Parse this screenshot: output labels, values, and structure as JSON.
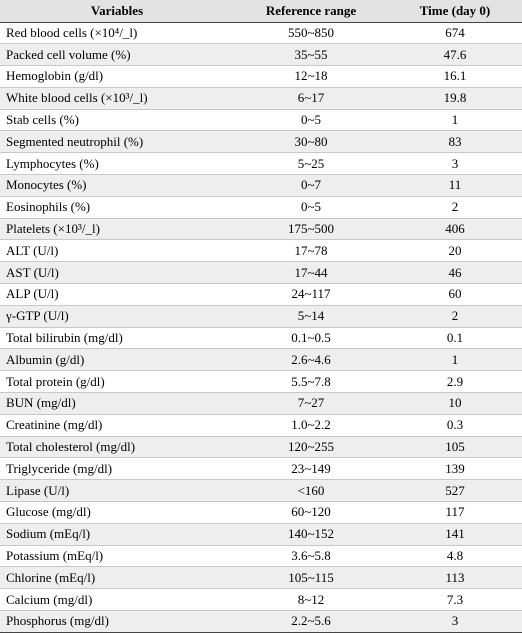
{
  "table": {
    "headers": [
      "Variables",
      "Reference range",
      "Time (day 0)"
    ],
    "rows": [
      {
        "variable": "Red blood cells (×10⁴/_l)",
        "reference": "550~850",
        "value": "674"
      },
      {
        "variable": "Packed cell volume (%)",
        "reference": "35~55",
        "value": "47.6"
      },
      {
        "variable": "Hemoglobin (g/dl)",
        "reference": "12~18",
        "value": "16.1"
      },
      {
        "variable": "White blood cells (×10³/_l)",
        "reference": "6~17",
        "value": "19.8"
      },
      {
        "variable": "Stab cells (%)",
        "reference": "0~5",
        "value": "1"
      },
      {
        "variable": "Segmented neutrophil (%)",
        "reference": "30~80",
        "value": "83"
      },
      {
        "variable": "Lymphocytes (%)",
        "reference": "5~25",
        "value": "3"
      },
      {
        "variable": "Monocytes (%)",
        "reference": "0~7",
        "value": "11"
      },
      {
        "variable": "Eosinophils (%)",
        "reference": "0~5",
        "value": "2"
      },
      {
        "variable": "Platelets (×10³/_l)",
        "reference": "175~500",
        "value": "406"
      },
      {
        "variable": "ALT (U/l)",
        "reference": "17~78",
        "value": "20"
      },
      {
        "variable": "AST (U/l)",
        "reference": "17~44",
        "value": "46"
      },
      {
        "variable": "ALP (U/l)",
        "reference": "24~117",
        "value": "60"
      },
      {
        "variable": "γ-GTP (U/l)",
        "reference": "5~14",
        "value": "2"
      },
      {
        "variable": "Total bilirubin (mg/dl)",
        "reference": "0.1~0.5",
        "value": "0.1"
      },
      {
        "variable": "Albumin (g/dl)",
        "reference": "2.6~4.6",
        "value": "1"
      },
      {
        "variable": "Total protein (g/dl)",
        "reference": "5.5~7.8",
        "value": "2.9"
      },
      {
        "variable": "BUN (mg/dl)",
        "reference": "7~27",
        "value": "10"
      },
      {
        "variable": "Creatinine (mg/dl)",
        "reference": "1.0~2.2",
        "value": "0.3"
      },
      {
        "variable": "Total cholesterol (mg/dl)",
        "reference": "120~255",
        "value": "105"
      },
      {
        "variable": "Triglyceride (mg/dl)",
        "reference": "23~149",
        "value": "139"
      },
      {
        "variable": "Lipase (U/l)",
        "reference": "<160",
        "value": "527"
      },
      {
        "variable": "Glucose (mg/dl)",
        "reference": "60~120",
        "value": "117"
      },
      {
        "variable": "Sodium (mEq/l)",
        "reference": "140~152",
        "value": "141"
      },
      {
        "variable": "Potassium (mEq/l)",
        "reference": "3.6~5.8",
        "value": "4.8"
      },
      {
        "variable": "Chlorine (mEq/l)",
        "reference": "105~115",
        "value": "113"
      },
      {
        "variable": "Calcium (mg/dl)",
        "reference": "8~12",
        "value": "7.3"
      },
      {
        "variable": "Phosphorus (mg/dl)",
        "reference": "2.2~5.6",
        "value": "3"
      }
    ]
  }
}
